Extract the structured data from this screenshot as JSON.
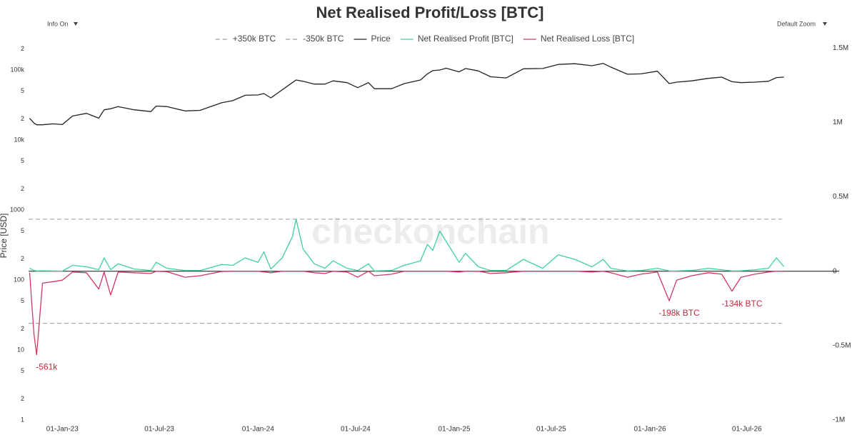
{
  "controls": {
    "left": "Info On",
    "right": "Default Zoom"
  },
  "watermark": "checkonchain",
  "chart_data": {
    "type": "line",
    "title": "Net Realised Profit/Loss [BTC]",
    "y_label": "Price [USD]",
    "log_y": true,
    "xlim": [
      "2022-10-30",
      "2026-12-20"
    ],
    "xticks": [
      {
        "value": "2023-01-01",
        "label": "01-Jan-23"
      },
      {
        "value": "2023-07-01",
        "label": "01-Jul-23"
      },
      {
        "value": "2024-01-01",
        "label": "01-Jan-24"
      },
      {
        "value": "2024-07-01",
        "label": "01-Jul-24"
      },
      {
        "value": "2025-01-01",
        "label": "01-Jan-25"
      },
      {
        "value": "2025-07-01",
        "label": "01-Jul-25"
      },
      {
        "value": "2026-01-01",
        "label": "01-Jan-26"
      },
      {
        "value": "2026-07-01",
        "label": "01-Jul-26"
      }
    ],
    "ylim": [
      1,
      250000
    ],
    "yticks": [
      1,
      2,
      5,
      10,
      {
        "value": 20,
        "label": "2"
      },
      {
        "value": 50,
        "label": "5"
      },
      100,
      {
        "value": 200,
        "label": "2"
      },
      {
        "value": 500,
        "label": "5"
      },
      1000,
      {
        "value": 2000,
        "label": "2"
      },
      {
        "value": 5000,
        "label": "5"
      },
      {
        "value": 10000,
        "label": "10k"
      },
      {
        "value": 20000,
        "label": "2"
      },
      {
        "value": 50000,
        "label": "5"
      },
      {
        "value": 100000,
        "label": "100k"
      },
      {
        "value": 200000,
        "label": "2"
      }
    ],
    "y2lim": [
      -1000000,
      1540000
    ],
    "y2ticks": [
      {
        "value": -1000000,
        "label": "-1M"
      },
      {
        "value": -500000,
        "label": "-0.5M"
      },
      0,
      {
        "value": 500000,
        "label": "0.5M"
      },
      {
        "value": 1000000,
        "label": "1M"
      },
      {
        "value": 1500000,
        "label": "1.5M"
      }
    ],
    "reference_lines": [
      {
        "name": "+350k BTC",
        "value": 350000,
        "color": "#9a9a9a",
        "axis": "y2"
      },
      {
        "name": "-350k BTC",
        "value": -350000,
        "color": "#9a9a9a",
        "axis": "y2"
      }
    ],
    "x": [
      "2022-11-01",
      "2022-11-09",
      "2022-11-14",
      "2022-11-25",
      "2022-12-15",
      "2023-01-01",
      "2023-01-20",
      "2023-02-15",
      "2023-03-10",
      "2023-03-20",
      "2023-04-01",
      "2023-04-15",
      "2023-05-15",
      "2023-06-15",
      "2023-06-25",
      "2023-07-15",
      "2023-08-18",
      "2023-09-15",
      "2023-10-25",
      "2023-11-15",
      "2023-12-08",
      "2024-01-01",
      "2024-01-12",
      "2024-01-25",
      "2024-02-15",
      "2024-03-05",
      "2024-03-12",
      "2024-03-25",
      "2024-04-15",
      "2024-05-05",
      "2024-05-20",
      "2024-06-15",
      "2024-07-05",
      "2024-07-25",
      "2024-08-05",
      "2024-09-06",
      "2024-09-30",
      "2024-10-30",
      "2024-11-12",
      "2024-11-22",
      "2024-12-05",
      "2024-12-17",
      "2025-01-10",
      "2025-01-22",
      "2025-02-15",
      "2025-03-10",
      "2025-04-08",
      "2025-05-10",
      "2025-06-15",
      "2025-07-14",
      "2025-08-14",
      "2025-09-15",
      "2025-10-06",
      "2025-10-20",
      "2025-11-20",
      "2025-12-15",
      "2026-01-15",
      "2026-02-06",
      "2026-02-20",
      "2026-03-20",
      "2026-04-20",
      "2026-05-15",
      "2026-06-03",
      "2026-06-20",
      "2026-07-15",
      "2026-08-10",
      "2026-08-25",
      "2026-09-08"
    ],
    "series": [
      {
        "name": "Price",
        "color": "#222222",
        "axis": "y",
        "values": [
          20400,
          17500,
          16500,
          16500,
          17000,
          16600,
          22000,
          24000,
          20500,
          27000,
          28000,
          30000,
          27000,
          25500,
          30500,
          30000,
          26000,
          26500,
          34000,
          36500,
          43500,
          44000,
          46000,
          40000,
          52000,
          66000,
          72000,
          69000,
          63000,
          63000,
          70000,
          66000,
          56000,
          66000,
          54000,
          54000,
          64000,
          72000,
          88000,
          98000,
          100000,
          106000,
          94000,
          105000,
          97000,
          80000,
          77000,
          104000,
          105000,
          120000,
          123000,
          115000,
          124000,
          110000,
          87000,
          88000,
          96000,
          64000,
          67000,
          70000,
          76000,
          79000,
          68000,
          66000,
          67000,
          69000,
          78000,
          79000
        ]
      },
      {
        "name": "Net Realised Profit [BTC]",
        "color": "#3fd19b",
        "axis": "y2",
        "values": [
          20000,
          5000,
          2000,
          3000,
          2000,
          1000,
          40000,
          30000,
          10000,
          90000,
          10000,
          50000,
          15000,
          5000,
          60000,
          20000,
          5000,
          5000,
          45000,
          40000,
          90000,
          60000,
          130000,
          15000,
          90000,
          230000,
          350000,
          150000,
          50000,
          20000,
          70000,
          20000,
          5000,
          50000,
          2000,
          5000,
          40000,
          70000,
          180000,
          140000,
          270000,
          200000,
          60000,
          120000,
          30000,
          5000,
          5000,
          80000,
          20000,
          110000,
          80000,
          30000,
          80000,
          20000,
          2000,
          5000,
          20000,
          2000,
          2000,
          5000,
          20000,
          10000,
          2000,
          3000,
          10000,
          20000,
          90000,
          30000
        ]
      },
      {
        "name": "Net Realised Loss [BTC]",
        "color": "#d2385f",
        "axis": "y2",
        "values": [
          -10000,
          -420000,
          -561000,
          -80000,
          -70000,
          -60000,
          -5000,
          -10000,
          -120000,
          -5000,
          -160000,
          -5000,
          -10000,
          -15000,
          0,
          -3000,
          -40000,
          -30000,
          -2000,
          0,
          0,
          0,
          -5000,
          -10000,
          0,
          0,
          0,
          0,
          -10000,
          -15000,
          0,
          -5000,
          -40000,
          0,
          -30000,
          -20000,
          0,
          0,
          0,
          0,
          0,
          0,
          -5000,
          0,
          0,
          -15000,
          -10000,
          0,
          0,
          0,
          0,
          -5000,
          0,
          -10000,
          -40000,
          -20000,
          -5000,
          -198000,
          -60000,
          -30000,
          -10000,
          -20000,
          -134000,
          -40000,
          -20000,
          -5000,
          0,
          0
        ]
      }
    ],
    "annotations": [
      {
        "text": "-561k",
        "x": "2022-11-14",
        "y": -561000
      },
      {
        "text": "-198k BTC",
        "x": "2026-02-06",
        "y": -198000
      },
      {
        "text": "-134k BTC",
        "x": "2026-06-03",
        "y": -134000
      }
    ]
  }
}
